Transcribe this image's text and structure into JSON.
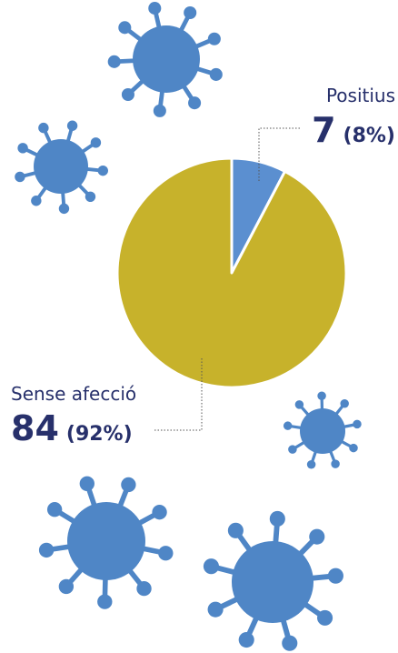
{
  "chart_data": {
    "type": "pie",
    "categories": [
      "Positius",
      "Sense afecció"
    ],
    "values": [
      7,
      84
    ],
    "percent_labels": [
      "(8%)",
      "(92%)"
    ],
    "colors": [
      "#5b8fd0",
      "#c7b22b"
    ]
  }
}
